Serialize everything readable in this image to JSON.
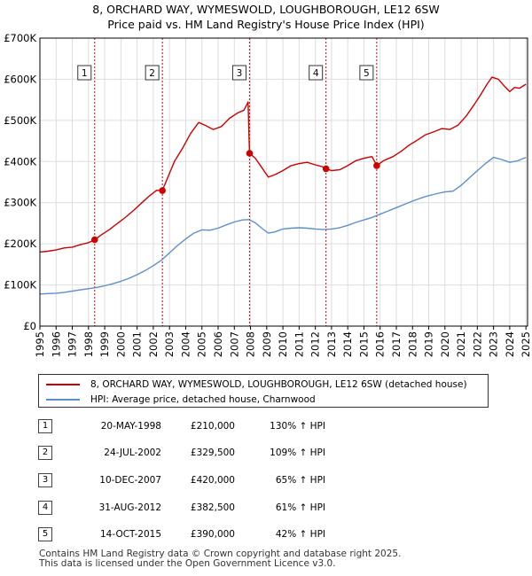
{
  "chart_data": {
    "type": "line",
    "title": "8, ORCHARD WAY, WYMESWOLD, LOUGHBOROUGH, LE12 6SW",
    "subtitle": "Price paid vs. HM Land Registry's House Price Index (HPI)",
    "xlim": [
      1995,
      2025.1
    ],
    "ylim": [
      0,
      700000
    ],
    "y_ticks": [
      0,
      100000,
      200000,
      300000,
      400000,
      500000,
      600000,
      700000
    ],
    "y_tick_labels": [
      "£0",
      "£100K",
      "£200K",
      "£300K",
      "£400K",
      "£500K",
      "£600K",
      "£700K"
    ],
    "x_ticks": [
      "1995",
      "1996",
      "1997",
      "1998",
      "1999",
      "2000",
      "2001",
      "2002",
      "2003",
      "2004",
      "2005",
      "2006",
      "2007",
      "2008",
      "2009",
      "2010",
      "2011",
      "2012",
      "2013",
      "2014",
      "2015",
      "2016",
      "2017",
      "2018",
      "2019",
      "2020",
      "2021",
      "2022",
      "2023",
      "2024",
      "2025"
    ],
    "colors": {
      "property": "#cc0000",
      "hpi": "#5b8fcf",
      "marker_line": "#cc0000",
      "grid": "#dddddd"
    },
    "series": [
      {
        "name": "8, ORCHARD WAY, WYMESWOLD, LOUGHBOROUGH, LE12 6SW (detached house)",
        "color": "#cc0000",
        "x": [
          1995.0,
          1995.5,
          1996.0,
          1996.5,
          1997.0,
          1997.5,
          1998.0,
          1998.38,
          1998.8,
          1999.3,
          1999.8,
          2000.3,
          2000.8,
          2001.3,
          2001.8,
          2002.2,
          2002.56,
          2002.9,
          2003.3,
          2003.8,
          2004.3,
          2004.8,
          2005.2,
          2005.7,
          2006.2,
          2006.7,
          2007.2,
          2007.6,
          2007.85,
          2007.94,
          2008.3,
          2008.7,
          2009.1,
          2009.5,
          2010.0,
          2010.5,
          2011.0,
          2011.5,
          2012.0,
          2012.4,
          2012.66,
          2013.0,
          2013.5,
          2014.0,
          2014.5,
          2015.0,
          2015.5,
          2015.79,
          2016.2,
          2016.8,
          2017.3,
          2017.8,
          2018.3,
          2018.8,
          2019.3,
          2019.8,
          2020.3,
          2020.8,
          2021.3,
          2021.8,
          2022.2,
          2022.6,
          2022.9,
          2023.3,
          2023.7,
          2024.0,
          2024.3,
          2024.6,
          2025.0
        ],
        "values": [
          180000,
          182000,
          185000,
          190000,
          192000,
          198000,
          203000,
          210000,
          222000,
          235000,
          250000,
          265000,
          282000,
          300000,
          318000,
          330000,
          329500,
          362000,
          400000,
          432000,
          468000,
          495000,
          488000,
          478000,
          485000,
          505000,
          518000,
          525000,
          545000,
          420000,
          408000,
          385000,
          362000,
          368000,
          378000,
          390000,
          395000,
          398000,
          392000,
          388000,
          382500,
          378000,
          380000,
          390000,
          402000,
          408000,
          412000,
          390000,
          402000,
          412000,
          425000,
          440000,
          452000,
          465000,
          472000,
          480000,
          478000,
          488000,
          510000,
          538000,
          562000,
          588000,
          605000,
          600000,
          582000,
          570000,
          580000,
          578000,
          588000
        ]
      },
      {
        "name": "HPI: Average price, detached house, Charnwood",
        "color": "#5b8fcf",
        "x": [
          1995.0,
          1995.5,
          1996.0,
          1996.5,
          1997.0,
          1997.5,
          1998.0,
          1998.5,
          1999.0,
          1999.5,
          2000.0,
          2000.5,
          2001.0,
          2001.5,
          2002.0,
          2002.5,
          2003.0,
          2003.5,
          2004.0,
          2004.5,
          2005.0,
          2005.5,
          2006.0,
          2006.5,
          2007.0,
          2007.5,
          2007.9,
          2008.3,
          2008.7,
          2009.1,
          2009.5,
          2010.0,
          2010.5,
          2011.0,
          2011.5,
          2012.0,
          2012.5,
          2013.0,
          2013.5,
          2014.0,
          2014.5,
          2015.0,
          2015.5,
          2016.0,
          2016.5,
          2017.0,
          2017.5,
          2018.0,
          2018.5,
          2019.0,
          2019.5,
          2020.0,
          2020.5,
          2021.0,
          2021.5,
          2022.0,
          2022.5,
          2023.0,
          2023.5,
          2024.0,
          2024.5,
          2025.0
        ],
        "values": [
          78000,
          79000,
          80000,
          82000,
          85000,
          88000,
          91000,
          94000,
          98000,
          103000,
          109000,
          116000,
          125000,
          135000,
          147000,
          160000,
          178000,
          196000,
          212000,
          226000,
          234000,
          233000,
          238000,
          246000,
          253000,
          258000,
          259000,
          251000,
          238000,
          226000,
          229000,
          236000,
          238000,
          239000,
          238000,
          236000,
          235000,
          236000,
          239000,
          245000,
          252000,
          258000,
          264000,
          272000,
          280000,
          288000,
          296000,
          304000,
          311000,
          317000,
          322000,
          326000,
          328000,
          342000,
          360000,
          378000,
          395000,
          410000,
          405000,
          398000,
          402000,
          410000
        ]
      }
    ],
    "sales": [
      {
        "num": "1",
        "x": 1998.38,
        "value": 210000,
        "date": "20-MAY-1998",
        "price": "£210,000",
        "hpi": "130% ↑ HPI"
      },
      {
        "num": "2",
        "x": 2002.56,
        "value": 329500,
        "date": "24-JUL-2002",
        "price": "£329,500",
        "hpi": "109% ↑ HPI"
      },
      {
        "num": "3",
        "x": 2007.94,
        "value": 420000,
        "date": "10-DEC-2007",
        "price": "£420,000",
        "hpi": "65% ↑ HPI"
      },
      {
        "num": "4",
        "x": 2012.66,
        "value": 382500,
        "date": "31-AUG-2012",
        "price": "£382,500",
        "hpi": "61% ↑ HPI"
      },
      {
        "num": "5",
        "x": 2015.79,
        "value": 390000,
        "date": "14-OCT-2015",
        "price": "£390,000",
        "hpi": "42% ↑ HPI"
      }
    ]
  },
  "legend": {
    "property_label": "8, ORCHARD WAY, WYMESWOLD, LOUGHBOROUGH, LE12 6SW (detached house)",
    "hpi_label": "HPI: Average price, detached house, Charnwood"
  },
  "footer": {
    "line1": "Contains HM Land Registry data © Crown copyright and database right 2025.",
    "line2": "This data is licensed under the Open Government Licence v3.0."
  }
}
